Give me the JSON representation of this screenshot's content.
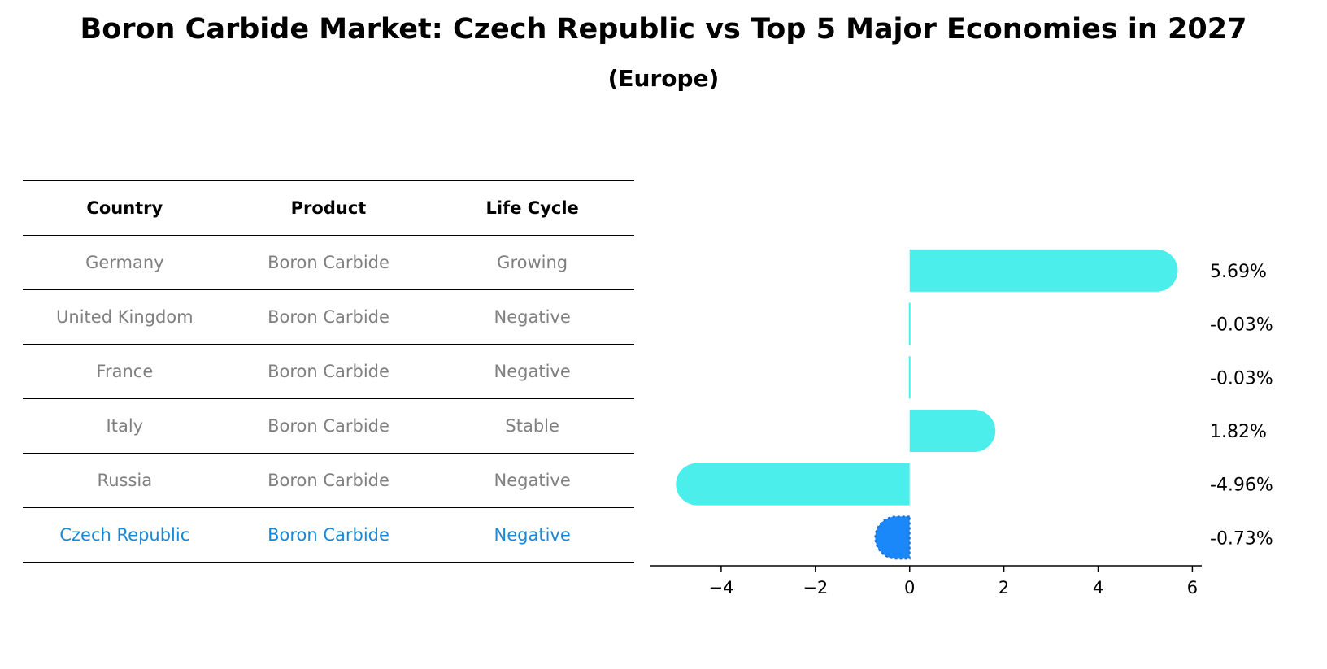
{
  "title": "Boron Carbide Market: Czech Republic vs Top 5 Major Economies in 2027",
  "subtitle": "(Europe)",
  "table": {
    "headers": [
      "Country",
      "Product",
      "Life Cycle"
    ],
    "rows": [
      {
        "country": "Germany",
        "product": "Boron Carbide",
        "life_cycle": "Growing"
      },
      {
        "country": "United Kingdom",
        "product": "Boron Carbide",
        "life_cycle": "Negative"
      },
      {
        "country": "France",
        "product": "Boron Carbide",
        "life_cycle": "Negative"
      },
      {
        "country": "Italy",
        "product": "Boron Carbide",
        "life_cycle": "Stable"
      },
      {
        "country": "Russia",
        "product": "Boron Carbide",
        "life_cycle": "Negative"
      },
      {
        "country": "Czech Republic",
        "product": "Boron Carbide",
        "life_cycle": "Negative"
      }
    ],
    "highlight_color": "#1a88d8",
    "text_color": "#808080"
  },
  "chart_data": {
    "type": "bar",
    "orientation": "horizontal",
    "categories": [
      "Germany",
      "United Kingdom",
      "France",
      "Italy",
      "Russia",
      "Czech Republic"
    ],
    "values": [
      5.69,
      -0.03,
      -0.03,
      1.82,
      -4.96,
      -0.73
    ],
    "value_labels": [
      "5.69%",
      "-0.03%",
      "-0.03%",
      "1.82%",
      "-4.96%",
      "-0.73%"
    ],
    "xlim": [
      -5.5,
      6.2
    ],
    "xticks": [
      -4,
      -2,
      0,
      2,
      4,
      6
    ],
    "xtick_labels": [
      "−4",
      "−2",
      "0",
      "2",
      "4",
      "6"
    ],
    "colors": [
      "#4beeea",
      "#4beeea",
      "#4beeea",
      "#4beeea",
      "#4beeea",
      "#1a88f8"
    ],
    "highlight_index": 5,
    "grid": false
  }
}
